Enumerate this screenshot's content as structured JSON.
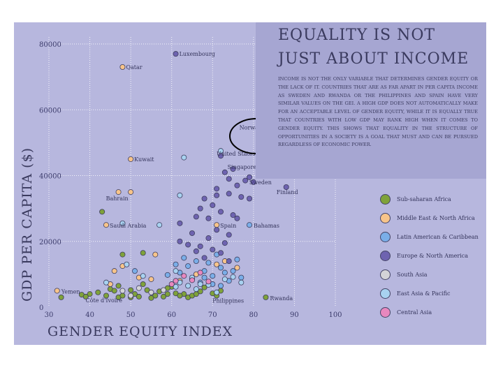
{
  "chart_data": {
    "type": "scatter",
    "title": "Equality is not just about income",
    "description": "Income is not the only variable that determines gender equity or the lack of it. Countries that are as far apart in per capita income as Sweden and Rwanda or the Philippines and Spain have very similar values on the GEI. A high GDP does not automatically make for an acceptable level of gender equity, while it is equally true that countries with low GDP may rank high when it comes to gender equity. This shows that equality in the structure of opportunities in a society is a goal that must and can be pursued regardless of economic power.",
    "xlabel": "Gender Equity Index",
    "ylabel": "GDP per capita ($)",
    "xlim": [
      30,
      100
    ],
    "ylim": [
      0,
      80000
    ],
    "xticks": [
      "30",
      "40",
      "50",
      "60",
      "70",
      "80",
      "90",
      "100"
    ],
    "yticks": [
      "0",
      "20000",
      "40000",
      "60000",
      "80000"
    ],
    "grid": true,
    "legend_position": "right",
    "series": [
      {
        "name": "Sub-saharan Africa",
        "color": "#7fa23a",
        "points": [
          [
            43,
            29000
          ],
          [
            48,
            16000
          ],
          [
            53,
            16500
          ],
          [
            40,
            4000
          ],
          [
            42,
            4500
          ],
          [
            44,
            3500
          ],
          [
            45,
            5500
          ],
          [
            46,
            5000
          ],
          [
            47,
            3000
          ],
          [
            48,
            3500
          ],
          [
            50,
            3000
          ],
          [
            51,
            4000
          ],
          [
            52,
            3200
          ],
          [
            54,
            5200
          ],
          [
            56,
            3500
          ],
          [
            57,
            4800
          ],
          [
            58,
            3200
          ],
          [
            59,
            4000
          ],
          [
            61,
            4200
          ],
          [
            63,
            4000
          ],
          [
            64,
            3000
          ],
          [
            65,
            3500
          ],
          [
            66,
            4000
          ],
          [
            67,
            4800
          ],
          [
            68,
            6000
          ],
          [
            71,
            3500
          ],
          [
            33,
            3000
          ],
          [
            38,
            3800
          ],
          [
            39,
            3200
          ],
          [
            55,
            2800
          ],
          [
            62,
            3500
          ],
          [
            70,
            4200
          ],
          [
            72,
            5000
          ],
          [
            83,
            3000
          ],
          [
            47,
            6500
          ],
          [
            53,
            7000
          ],
          [
            60,
            6200
          ],
          [
            50,
            5200
          ],
          [
            59,
            5800
          ]
        ]
      },
      {
        "name": "Middle East & North Africa",
        "color": "#f7c48a",
        "points": [
          [
            48,
            73000
          ],
          [
            50,
            45000
          ],
          [
            47,
            35000
          ],
          [
            50,
            35000
          ],
          [
            44,
            25000
          ],
          [
            71,
            25000
          ],
          [
            32,
            5000
          ],
          [
            45,
            7000
          ],
          [
            46,
            11000
          ],
          [
            48,
            12500
          ],
          [
            52,
            9000
          ],
          [
            55,
            8500
          ],
          [
            62,
            8000
          ],
          [
            66,
            10000
          ],
          [
            71,
            13000
          ],
          [
            73,
            14000
          ],
          [
            76,
            12000
          ],
          [
            56,
            16000
          ]
        ]
      },
      {
        "name": "Latin American & Caribbean",
        "color": "#7aaee8",
        "points": [
          [
            79,
            25000
          ],
          [
            61,
            13000
          ],
          [
            63,
            15000
          ],
          [
            64,
            12500
          ],
          [
            66,
            14000
          ],
          [
            68,
            11000
          ],
          [
            69,
            13500
          ],
          [
            70,
            9500
          ],
          [
            71,
            16000
          ],
          [
            72,
            12000
          ],
          [
            73,
            10500
          ],
          [
            74,
            8000
          ],
          [
            75,
            11000
          ],
          [
            76,
            14500
          ],
          [
            77,
            9000
          ],
          [
            65,
            8500
          ],
          [
            67,
            7500
          ],
          [
            68,
            9000
          ],
          [
            70,
            7000
          ],
          [
            72,
            6500
          ],
          [
            59,
            9800
          ],
          [
            62,
            10500
          ],
          [
            51,
            11000
          ]
        ]
      },
      {
        "name": "Europe & North America",
        "color": "#6e63b0",
        "points": [
          [
            61,
            77000
          ],
          [
            83,
            51500
          ],
          [
            72,
            46000
          ],
          [
            75,
            42000
          ],
          [
            80,
            38000
          ],
          [
            88,
            36500
          ],
          [
            71,
            36000
          ],
          [
            73,
            41000
          ],
          [
            74,
            39000
          ],
          [
            76,
            37000
          ],
          [
            78,
            38500
          ],
          [
            79,
            39500
          ],
          [
            71,
            34000
          ],
          [
            74,
            34500
          ],
          [
            77,
            33500
          ],
          [
            68,
            33000
          ],
          [
            70,
            31000
          ],
          [
            67,
            30000
          ],
          [
            72,
            29000
          ],
          [
            75,
            28000
          ],
          [
            66,
            27500
          ],
          [
            69,
            27000
          ],
          [
            62,
            25500
          ],
          [
            65,
            22500
          ],
          [
            71,
            23500
          ],
          [
            74,
            22000
          ],
          [
            76,
            27000
          ],
          [
            64,
            19000
          ],
          [
            66,
            17000
          ],
          [
            68,
            15000
          ],
          [
            70,
            17500
          ],
          [
            72,
            16500
          ],
          [
            73,
            19500
          ],
          [
            74,
            14000
          ],
          [
            69,
            21000
          ],
          [
            67,
            18500
          ],
          [
            79,
            33000
          ],
          [
            62,
            20000
          ]
        ]
      },
      {
        "name": "South Asia",
        "color": "#d3d3d7",
        "points": [
          [
            48,
            5000
          ],
          [
            52,
            5800
          ],
          [
            55,
            4500
          ],
          [
            50,
            3500
          ],
          [
            58,
            5200
          ]
        ]
      },
      {
        "name": "East Asia & Pacific",
        "color": "#a8d2f0",
        "points": [
          [
            72,
            47500
          ],
          [
            63,
            45500
          ],
          [
            62,
            34000
          ],
          [
            48,
            25500
          ],
          [
            57,
            25000
          ],
          [
            49,
            13000
          ],
          [
            53,
            9500
          ],
          [
            61,
            11000
          ],
          [
            62,
            7500
          ],
          [
            64,
            6500
          ],
          [
            66,
            5500
          ],
          [
            67,
            7000
          ],
          [
            69,
            6800
          ],
          [
            71,
            4500
          ],
          [
            73,
            8500
          ],
          [
            75,
            9200
          ],
          [
            77,
            7500
          ],
          [
            61,
            6200
          ],
          [
            65,
            9000
          ],
          [
            44,
            7500
          ]
        ]
      },
      {
        "name": "Central Asia",
        "color": "#e888be",
        "points": [
          [
            61,
            8000
          ],
          [
            63,
            9500
          ],
          [
            65,
            8200
          ],
          [
            67,
            10500
          ],
          [
            69,
            7800
          ],
          [
            60,
            7000
          ]
        ]
      }
    ],
    "annotations": [
      {
        "text": "Luxembourg",
        "point": [
          61,
          77000
        ]
      },
      {
        "text": "Qatar",
        "point": [
          48,
          73000
        ]
      },
      {
        "text": "Norway",
        "point": [
          83,
          51500
        ]
      },
      {
        "text": "United States of America",
        "point": [
          72,
          46000
        ]
      },
      {
        "text": "Kuwait",
        "point": [
          50,
          45000
        ]
      },
      {
        "text": "Singapore",
        "point": [
          75,
          42000
        ]
      },
      {
        "text": "Sweden",
        "point": [
          80,
          38000
        ]
      },
      {
        "text": "Finland",
        "point": [
          88,
          36500
        ]
      },
      {
        "text": "Bahrain",
        "point": [
          47,
          35000
        ]
      },
      {
        "text": "Spain",
        "point": [
          71,
          25000
        ]
      },
      {
        "text": "Saudi Arabia",
        "point": [
          44,
          25000
        ]
      },
      {
        "text": "Bahamas",
        "point": [
          79,
          25000
        ]
      },
      {
        "text": "Yemen",
        "point": [
          32,
          5000
        ]
      },
      {
        "text": "Côte d'Ivoire",
        "point": [
          40,
          4000
        ]
      },
      {
        "text": "Philippines",
        "point": [
          71,
          3500
        ]
      },
      {
        "text": "Rwanda",
        "point": [
          83,
          3000
        ]
      }
    ],
    "highlight": "Norway"
  }
}
